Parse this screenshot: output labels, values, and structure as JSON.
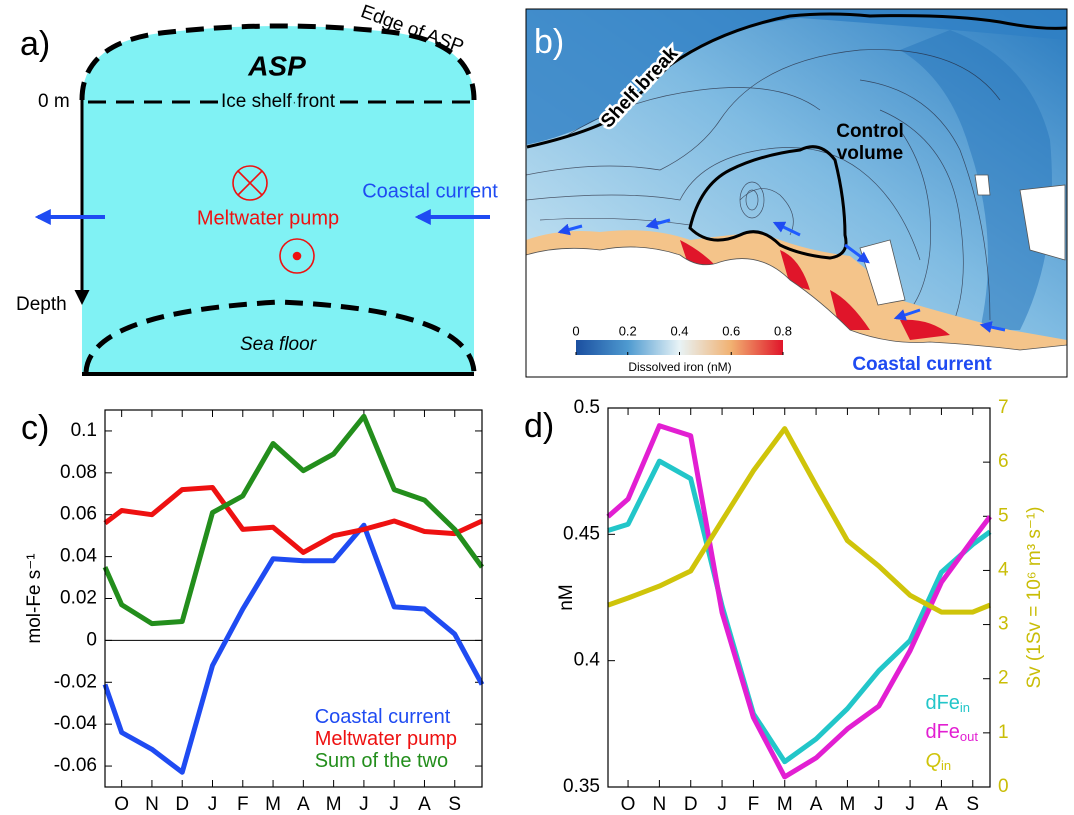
{
  "panel_a": {
    "label": "a)",
    "edge_label": "Edge of ASP",
    "title": "ASP",
    "surface_label": "0 m",
    "ice_front_label": "Ice shelf front",
    "current_label": "Coastal current",
    "pump_label": "Meltwater pump",
    "depth_label": "Depth",
    "floor_label": "Sea floor"
  },
  "panel_b": {
    "label": "b)",
    "shelf_label": "Shelf break",
    "control_label": [
      "Control",
      "volume"
    ],
    "current_label": "Coastal current",
    "colorbar": {
      "lim": [
        0,
        0.8
      ],
      "ticks": [
        0,
        0.2,
        0.4,
        0.6,
        0.8
      ],
      "label": "Dissolved iron (nM)"
    }
  },
  "chart_data": [
    {
      "type": "line",
      "label": "c)",
      "ylabel": "mol-Fe s⁻¹",
      "x": [
        0.45,
        1,
        2,
        3,
        4,
        5,
        6,
        7,
        8,
        9,
        10,
        11,
        12,
        12.9
      ],
      "xlim": [
        0.45,
        12.9
      ],
      "xticks": [
        {
          "value": 1,
          "label": "O"
        },
        {
          "value": 2,
          "label": "N"
        },
        {
          "value": 3,
          "label": "D"
        },
        {
          "value": 4,
          "label": "J"
        },
        {
          "value": 5,
          "label": "F"
        },
        {
          "value": 6,
          "label": "M"
        },
        {
          "value": 7,
          "label": "A"
        },
        {
          "value": 8,
          "label": "M"
        },
        {
          "value": 9,
          "label": "J"
        },
        {
          "value": 10,
          "label": "J"
        },
        {
          "value": 11,
          "label": "A"
        },
        {
          "value": 12,
          "label": "S"
        }
      ],
      "ylim": [
        -0.07,
        0.11
      ],
      "yticks": [
        -0.06,
        -0.04,
        -0.02,
        0,
        0.02,
        0.04,
        0.06,
        0.08,
        0.1
      ],
      "zero_line": true,
      "legend": "lower right",
      "series": [
        {
          "name": "Coastal current",
          "color": "#1f4bf2",
          "values": [
            -0.021,
            -0.044,
            -0.052,
            -0.063,
            -0.012,
            0.015,
            0.039,
            0.038,
            0.038,
            0.055,
            0.016,
            0.015,
            0.003,
            -0.021
          ]
        },
        {
          "name": "Meltwater pump",
          "color": "#ee1111",
          "values": [
            0.056,
            0.062,
            0.06,
            0.072,
            0.073,
            0.053,
            0.054,
            0.042,
            0.05,
            0.053,
            0.057,
            0.052,
            0.051,
            0.057
          ]
        },
        {
          "name": "Sum of the two",
          "color": "#238e1c",
          "values": [
            0.035,
            0.017,
            0.008,
            0.009,
            0.061,
            0.069,
            0.094,
            0.081,
            0.089,
            0.107,
            0.072,
            0.067,
            0.053,
            0.035
          ]
        }
      ]
    },
    {
      "type": "line",
      "label": "d)",
      "ylabel": "nM",
      "y2label": "Sv (1Sv = 10⁶ m³ s⁻¹)",
      "x": [
        0.36,
        1,
        2,
        3,
        4,
        5,
        6,
        7,
        8,
        9,
        10,
        11,
        12,
        12.55
      ],
      "xlim": [
        0.36,
        12.55
      ],
      "xticks": [
        {
          "value": 1,
          "label": "O"
        },
        {
          "value": 2,
          "label": "N"
        },
        {
          "value": 3,
          "label": "D"
        },
        {
          "value": 4,
          "label": "J"
        },
        {
          "value": 5,
          "label": "F"
        },
        {
          "value": 6,
          "label": "M"
        },
        {
          "value": 7,
          "label": "A"
        },
        {
          "value": 8,
          "label": "M"
        },
        {
          "value": 9,
          "label": "J"
        },
        {
          "value": 10,
          "label": "J"
        },
        {
          "value": 11,
          "label": "A"
        },
        {
          "value": 12,
          "label": "S"
        }
      ],
      "ylim": [
        0.35,
        0.5
      ],
      "yticks": [
        0.35,
        0.4,
        0.45,
        0.5
      ],
      "y2lim": [
        0,
        7
      ],
      "y2ticks": [
        0,
        1,
        2,
        3,
        4,
        5,
        6,
        7
      ],
      "y2color": "#c9bd06",
      "legend": "lower right",
      "series": [
        {
          "name": "dFe",
          "subscript": "in",
          "color": "#22c6c9",
          "values": [
            0.4515,
            0.454,
            0.479,
            0.472,
            0.4216,
            0.379,
            0.36,
            0.369,
            0.381,
            0.396,
            0.408,
            0.435,
            0.446,
            0.451
          ]
        },
        {
          "name": "dFe",
          "subscript": "out",
          "color": "#e21fd2",
          "values": [
            0.457,
            0.464,
            0.493,
            0.489,
            0.419,
            0.3775,
            0.354,
            0.3615,
            0.373,
            0.382,
            0.404,
            0.431,
            0.448,
            0.457
          ]
        },
        {
          "name": "Q",
          "subscript": "in",
          "name_italic": true,
          "axis": "y2",
          "color": "#cfc40a",
          "values": [
            3.36,
            3.49,
            3.71,
            3.99,
            4.92,
            5.84,
            6.62,
            5.57,
            4.55,
            4.08,
            3.54,
            3.23,
            3.23,
            3.36
          ]
        }
      ]
    }
  ]
}
